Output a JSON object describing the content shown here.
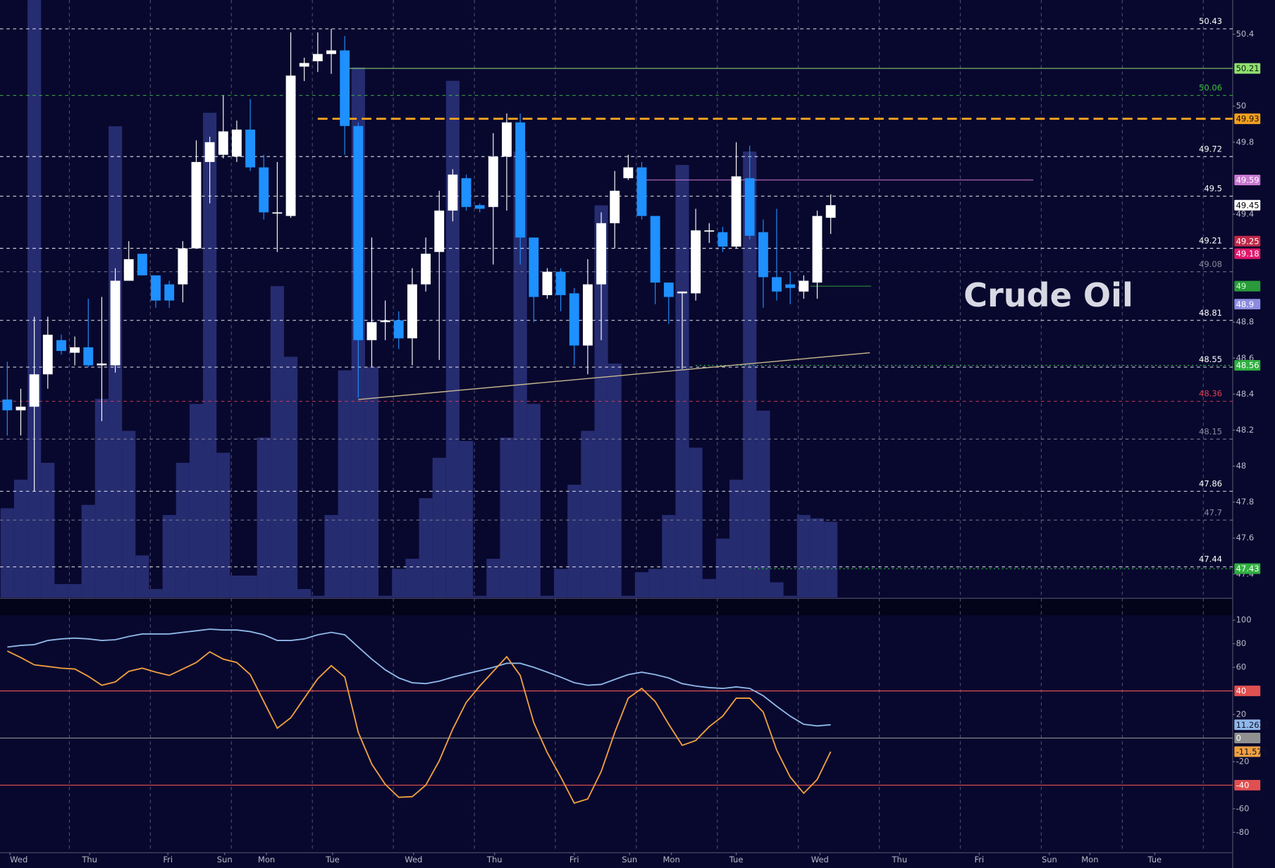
{
  "chart_data": [
    {
      "type": "candlestick",
      "title": "Crude Oil",
      "xlim": [
        -0.54,
        90.78
      ],
      "ylim": [
        47.27,
        50.59
      ],
      "yticks": [
        50.4,
        50,
        49.8,
        49.4,
        48.8,
        48.6,
        48.4,
        48.2,
        48,
        47.8,
        47.6,
        47.4
      ],
      "xgrid": [
        4.6,
        10.6,
        16.6,
        22.6,
        28.6,
        34.6,
        40.6,
        46.6,
        52.6,
        58.6,
        64.6,
        70.6,
        76.6,
        82.6,
        88.6
      ],
      "up_color": "#ffffff",
      "down_color": "#1e90ff",
      "volume_color": "#262c70",
      "vlim": [
        0,
        355
      ],
      "open": [
        48.37,
        48.31,
        48.33,
        48.51,
        48.7,
        48.63,
        48.66,
        48.56,
        48.56,
        49.03,
        49.18,
        49.06,
        49.01,
        49.01,
        49.21,
        49.69,
        49.73,
        49.72,
        49.87,
        49.66,
        49.41,
        49.39,
        50.22,
        50.25,
        50.29,
        50.31,
        49.89,
        48.7,
        48.8,
        48.81,
        48.71,
        49.01,
        49.19,
        49.42,
        49.6,
        49.45,
        49.44,
        49.72,
        49.91,
        49.27,
        48.95,
        49.08,
        48.96,
        48.67,
        49.01,
        49.35,
        49.6,
        49.66,
        49.39,
        49.02,
        48.96,
        48.96,
        49.31,
        49.3,
        49.22,
        49.6,
        49.3,
        49.05,
        49.01,
        48.97,
        49.02,
        49.38
      ],
      "high": [
        48.58,
        48.43,
        48.83,
        48.83,
        48.73,
        48.72,
        48.93,
        48.94,
        49.1,
        49.25,
        49.18,
        49.06,
        49.03,
        49.25,
        49.81,
        49.83,
        50.06,
        49.92,
        50.04,
        49.73,
        49.69,
        50.41,
        50.27,
        50.41,
        50.43,
        50.39,
        49.91,
        49.27,
        48.92,
        48.86,
        49.1,
        49.27,
        49.53,
        49.65,
        49.62,
        49.46,
        49.85,
        49.96,
        49.96,
        49.27,
        49.1,
        49.1,
        48.99,
        49.15,
        49.41,
        49.64,
        49.73,
        49.69,
        49.39,
        49.02,
        48.97,
        49.43,
        49.35,
        49.33,
        49.8,
        49.78,
        49.37,
        49.43,
        49.08,
        49.06,
        49.42,
        49.51
      ],
      "low": [
        48.17,
        48.17,
        47.86,
        48.43,
        48.62,
        48.56,
        48.55,
        48.25,
        48.52,
        49.03,
        49.06,
        48.88,
        48.88,
        48.91,
        49.21,
        49.46,
        49.71,
        49.69,
        49.64,
        49.37,
        49.19,
        49.38,
        50.14,
        50.19,
        50.18,
        49.73,
        48.38,
        48.55,
        48.7,
        48.65,
        48.56,
        48.97,
        48.59,
        49.36,
        49.42,
        49.41,
        49.12,
        49.42,
        49.12,
        48.8,
        48.93,
        48.86,
        48.56,
        48.51,
        48.7,
        49.21,
        49.59,
        49.37,
        48.9,
        48.79,
        48.54,
        48.92,
        49.24,
        49.19,
        49.21,
        49.26,
        48.88,
        48.92,
        48.9,
        48.93,
        48.93,
        49.29
      ],
      "close": [
        48.31,
        48.33,
        48.51,
        48.73,
        48.64,
        48.66,
        48.56,
        48.57,
        49.03,
        49.15,
        49.06,
        48.92,
        48.92,
        49.21,
        49.69,
        49.8,
        49.86,
        49.87,
        49.66,
        49.41,
        49.41,
        50.17,
        50.24,
        50.29,
        50.31,
        49.89,
        48.7,
        48.8,
        48.81,
        48.71,
        49.01,
        49.18,
        49.42,
        49.62,
        49.44,
        49.43,
        49.72,
        49.91,
        49.27,
        48.94,
        49.08,
        48.95,
        48.67,
        49.01,
        49.35,
        49.53,
        49.66,
        49.39,
        49.02,
        48.94,
        48.97,
        49.31,
        49.31,
        49.22,
        49.61,
        49.28,
        49.05,
        48.97,
        48.99,
        49.03,
        49.39,
        49.45
      ],
      "volume": [
        53,
        70,
        355,
        80,
        8,
        8,
        55,
        118,
        280,
        99,
        25,
        5,
        49,
        80,
        115,
        288,
        86,
        13,
        13,
        95,
        185,
        143,
        5,
        1,
        49,
        135,
        315,
        137,
        1,
        17,
        23,
        59,
        83,
        307,
        93,
        1,
        23,
        95,
        265,
        115,
        1,
        17,
        67,
        99,
        233,
        139,
        1,
        15,
        17,
        49,
        257,
        89,
        11,
        35,
        70,
        265,
        111,
        9,
        1,
        49,
        47,
        45
      ],
      "trendline": {
        "x": [
          26,
          63.9
        ],
        "y": [
          48.37,
          48.63
        ],
        "color": "#c8b890"
      },
      "levels": [
        {
          "value": 50.43,
          "color": "#ffffff",
          "line": "dash",
          "label": "text"
        },
        {
          "value": 50.21,
          "color": "#90e070",
          "line": "solid",
          "label": "tag",
          "text_color": "#102010",
          "x0": 25
        },
        {
          "value": 50.06,
          "color": "#40c040",
          "line": "dash",
          "label": "text"
        },
        {
          "value": 49.93,
          "color": "#f0a020",
          "line": "thick",
          "label": "tag",
          "text_color": "#201000",
          "x0": 23
        },
        {
          "value": 49.72,
          "color": "#ffffff",
          "line": "dash",
          "label": "text"
        },
        {
          "value": 49.59,
          "color": "#c878d0",
          "line": "solid",
          "label": "tag",
          "text_color": "#ffffff",
          "x0": 47,
          "x1": 76
        },
        {
          "value": 49.5,
          "color": "#ffffff",
          "line": "dash",
          "label": "text"
        },
        {
          "value": 49.45,
          "color": "#ffffff",
          "line": "none",
          "label": "tag",
          "text_color": "#000000"
        },
        {
          "value": 49.25,
          "color": "#c02848",
          "line": "none",
          "label": "tag",
          "text_color": "#ffffff"
        },
        {
          "value": 49.21,
          "color": "#ffffff",
          "line": "dash",
          "label": "text"
        },
        {
          "value": 49.18,
          "color": "#e0186a",
          "line": "none",
          "label": "tag",
          "text_color": "#ffffff"
        },
        {
          "value": 49.08,
          "color": "#8a8aa0",
          "line": "dash",
          "label": "text"
        },
        {
          "value": 49,
          "color": "#2a9a3a",
          "line": "solid",
          "label": "tag",
          "text_color": "#c0ffc0",
          "x0": 59.5,
          "x1": 64
        },
        {
          "value": 48.9,
          "color": "#8c8ce0",
          "line": "none",
          "label": "tag",
          "text_color": "#ffffff"
        },
        {
          "value": 48.81,
          "color": "#ffffff",
          "line": "dash",
          "label": "text"
        },
        {
          "value": 48.56,
          "color": "#30b040",
          "line": "dot",
          "label": "tag",
          "text_color": "#ffffff",
          "x0": 51
        },
        {
          "value": 48.55,
          "color": "#ffffff",
          "line": "dash",
          "label": "text"
        },
        {
          "value": 48.36,
          "color": "#e04050",
          "line": "dash",
          "label": "text"
        },
        {
          "value": 48.15,
          "color": "#8a8aa0",
          "line": "dash",
          "label": "text"
        },
        {
          "value": 47.86,
          "color": "#ffffff",
          "line": "dash",
          "label": "text"
        },
        {
          "value": 47.7,
          "color": "#8a8aa0",
          "line": "dash",
          "label": "text"
        },
        {
          "value": 47.44,
          "color": "#ffffff",
          "line": "dash",
          "label": "text"
        },
        {
          "value": 47.43,
          "color": "#30b040",
          "line": "dot",
          "label": "tag",
          "text_color": "#ffffff",
          "x0": 55
        }
      ]
    },
    {
      "type": "line",
      "xlim": [
        -0.54,
        90.78
      ],
      "ylim": [
        -96.6,
        104.1
      ],
      "yticks": [
        100,
        80,
        60,
        20,
        -20,
        -60,
        -80
      ],
      "xticks": [
        {
          "value": 0.2,
          "label": "Wed"
        },
        {
          "value": 6.1,
          "label": "Thu"
        },
        {
          "value": 11.9,
          "label": "Fri"
        },
        {
          "value": 16.1,
          "label": "Sun"
        },
        {
          "value": 19.2,
          "label": "Mon"
        },
        {
          "value": 24.1,
          "label": "Tue"
        },
        {
          "value": 30.1,
          "label": "Wed"
        },
        {
          "value": 36.1,
          "label": "Thu"
        },
        {
          "value": 42,
          "label": "Fri"
        },
        {
          "value": 46.1,
          "label": "Sun"
        },
        {
          "value": 49.2,
          "label": "Mon"
        },
        {
          "value": 54,
          "label": "Tue"
        },
        {
          "value": 60.2,
          "label": "Wed"
        },
        {
          "value": 66.1,
          "label": "Thu"
        },
        {
          "value": 72,
          "label": "Fri"
        },
        {
          "value": 77.2,
          "label": "Sun"
        },
        {
          "value": 80.2,
          "label": "Mon"
        },
        {
          "value": 85,
          "label": "Tue"
        }
      ],
      "levels": [
        {
          "value": 40,
          "color": "#e05050"
        },
        {
          "value": 0,
          "color": "#909090"
        },
        {
          "value": -40,
          "color": "#e05050"
        }
      ],
      "series": [
        {
          "color": "#8fb8e8",
          "values": [
            77.2,
            78.6,
            79.3,
            82.8,
            84.1,
            84.8,
            84.1,
            82.8,
            83.4,
            86.2,
            88.3,
            88.3,
            88.3,
            89.7,
            91.0,
            92.4,
            91.7,
            91.7,
            90.3,
            87.6,
            82.8,
            82.8,
            84.1,
            87.6,
            89.7,
            87.6,
            77.2,
            66.9,
            57.9,
            51.0,
            46.9,
            46.2,
            48.3,
            51.7,
            54.5,
            57.2,
            60.0,
            63.4,
            63.4,
            60.0,
            55.9,
            51.7,
            46.9,
            44.8,
            45.5,
            49.7,
            53.8,
            55.9,
            53.8,
            51.0,
            46.2,
            44.1,
            42.8,
            42.1,
            43.4,
            42.1,
            35.9,
            26.9,
            18.6,
            11.7,
            10.3,
            11.2625
          ]
        },
        {
          "color": "#f0a040",
          "values": [
            73.8,
            68.3,
            62.1,
            60.7,
            59.3,
            58.6,
            52.4,
            44.8,
            47.6,
            56.6,
            59.3,
            55.9,
            53.1,
            58.6,
            64.1,
            73.1,
            66.9,
            64.1,
            53.8,
            31.0,
            8.3,
            17.2,
            33.8,
            50.3,
            61.4,
            51.7,
            4.8,
            -22.1,
            -39.3,
            -50.3,
            -49.7,
            -40.0,
            -19.3,
            7.6,
            30.3,
            44.1,
            56.6,
            69.0,
            53.1,
            13.1,
            -12.4,
            -33.1,
            -55.2,
            -51.7,
            -28.3,
            4.8,
            33.8,
            42.1,
            31.0,
            11.7,
            -6.2,
            -2.1,
            9.7,
            18.6,
            33.8,
            33.8,
            22.1,
            -10.3,
            -33.1,
            -46.9,
            -35.2,
            -11.575
          ]
        }
      ]
    }
  ]
}
